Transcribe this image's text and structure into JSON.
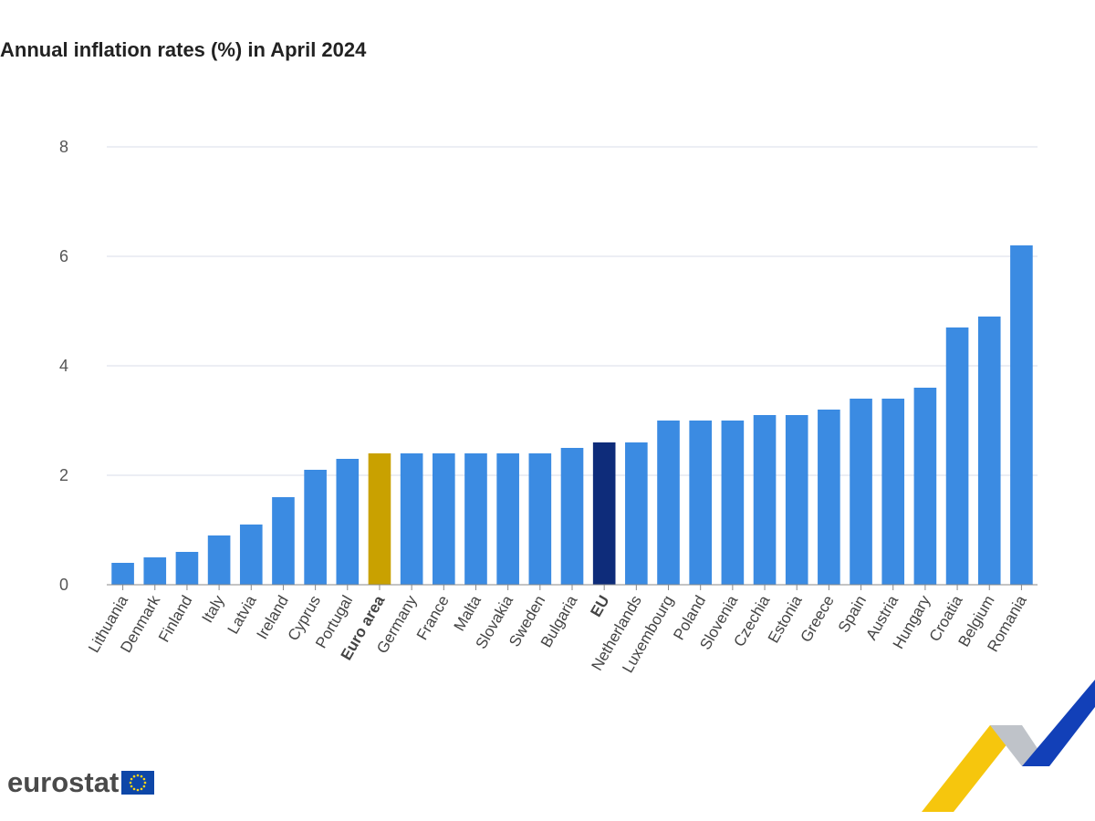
{
  "title": "Annual inflation rates (%) in April 2024",
  "brand": {
    "name": "eurostat"
  },
  "colors": {
    "bar": "#3b8be2",
    "euro_area": "#c9a100",
    "eu": "#0e2c7a",
    "grid": "#d9dde8",
    "axis": "#888888"
  },
  "chart_data": {
    "type": "bar",
    "title": "Annual inflation rates (%) in April 2024",
    "xlabel": "",
    "ylabel": "",
    "ylim": [
      0,
      8
    ],
    "yticks": [
      0,
      2,
      4,
      6,
      8
    ],
    "grid": true,
    "categories": [
      "Lithuania",
      "Denmark",
      "Finland",
      "Italy",
      "Latvia",
      "Ireland",
      "Cyprus",
      "Portugal",
      "Euro area",
      "Germany",
      "France",
      "Malta",
      "Slovakia",
      "Sweden",
      "Bulgaria",
      "EU",
      "Netherlands",
      "Luxembourg",
      "Poland",
      "Slovenia",
      "Czechia",
      "Estonia",
      "Greece",
      "Spain",
      "Austria",
      "Hungary",
      "Croatia",
      "Belgium",
      "Romania"
    ],
    "values": [
      0.4,
      0.5,
      0.6,
      0.9,
      1.1,
      1.6,
      2.1,
      2.3,
      2.4,
      2.4,
      2.4,
      2.4,
      2.4,
      2.4,
      2.5,
      2.6,
      2.6,
      3.0,
      3.0,
      3.0,
      3.1,
      3.1,
      3.2,
      3.4,
      3.4,
      3.6,
      4.7,
      4.9,
      6.2
    ],
    "highlight": {
      "Euro area": "euro_area",
      "EU": "eu"
    },
    "bold_labels": [
      "Euro area",
      "EU"
    ]
  }
}
